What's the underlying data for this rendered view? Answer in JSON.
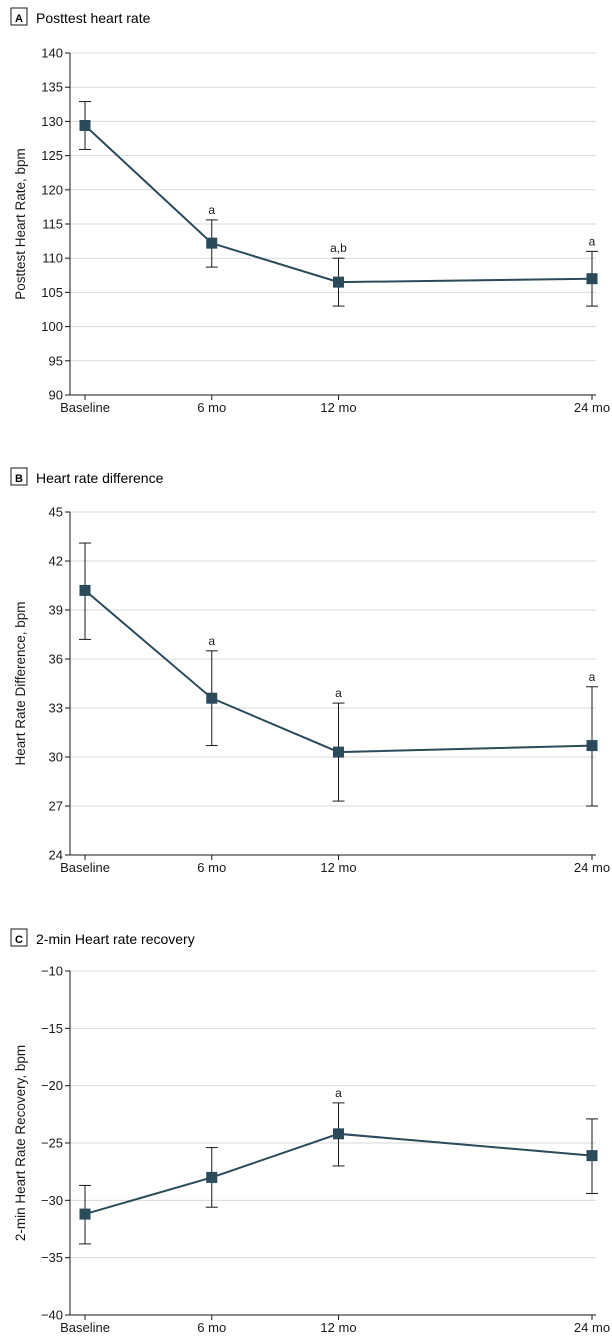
{
  "chart_data": [
    {
      "type": "line",
      "panel": "A",
      "title": "Posttest heart rate",
      "ylabel": "Posttest Heart Rate, bpm",
      "categories": [
        "Baseline",
        "6 mo",
        "12 mo",
        "24 mo"
      ],
      "x_months": [
        0,
        6,
        12,
        24
      ],
      "values": [
        129.4,
        112.2,
        106.5,
        107.0
      ],
      "err_upper": [
        132.9,
        115.6,
        110.0,
        111.0
      ],
      "err_lower": [
        125.9,
        108.7,
        103.0,
        103.0
      ],
      "annotations": [
        "",
        "a",
        "a,b",
        "a"
      ],
      "ylim": [
        90,
        140
      ],
      "yticks": [
        90,
        95,
        100,
        105,
        110,
        115,
        120,
        125,
        130,
        135,
        140
      ],
      "grid": true,
      "color": "#2b4a5a"
    },
    {
      "type": "line",
      "panel": "B",
      "title": "Heart rate difference",
      "ylabel": "Heart Rate Difference, bpm",
      "categories": [
        "Baseline",
        "6 mo",
        "12 mo",
        "24 mo"
      ],
      "x_months": [
        0,
        6,
        12,
        24
      ],
      "values": [
        40.2,
        33.6,
        30.3,
        30.7
      ],
      "err_upper": [
        43.1,
        36.5,
        33.3,
        34.3
      ],
      "err_lower": [
        37.2,
        30.7,
        27.3,
        27.0
      ],
      "annotations": [
        "",
        "a",
        "a",
        "a"
      ],
      "ylim": [
        24,
        45
      ],
      "yticks": [
        24,
        27,
        30,
        33,
        36,
        39,
        42,
        45
      ],
      "grid": true,
      "color": "#2b4a5a"
    },
    {
      "type": "line",
      "panel": "C",
      "title": "2-min Heart rate recovery",
      "ylabel": "2-min Heart Rate Recovery, bpm",
      "categories": [
        "Baseline",
        "6 mo",
        "12 mo",
        "24 mo"
      ],
      "x_months": [
        0,
        6,
        12,
        24
      ],
      "values": [
        -31.2,
        -28.0,
        -24.2,
        -26.1
      ],
      "err_upper": [
        -28.7,
        -25.4,
        -21.5,
        -22.9
      ],
      "err_lower": [
        -33.8,
        -30.6,
        -27.0,
        -29.4
      ],
      "annotations": [
        "",
        "",
        "a",
        ""
      ],
      "ylim": [
        -40,
        -10
      ],
      "yticks": [
        -40,
        -35,
        -30,
        -25,
        -20,
        -15,
        -10
      ],
      "grid": true,
      "color": "#2b4a5a"
    }
  ]
}
